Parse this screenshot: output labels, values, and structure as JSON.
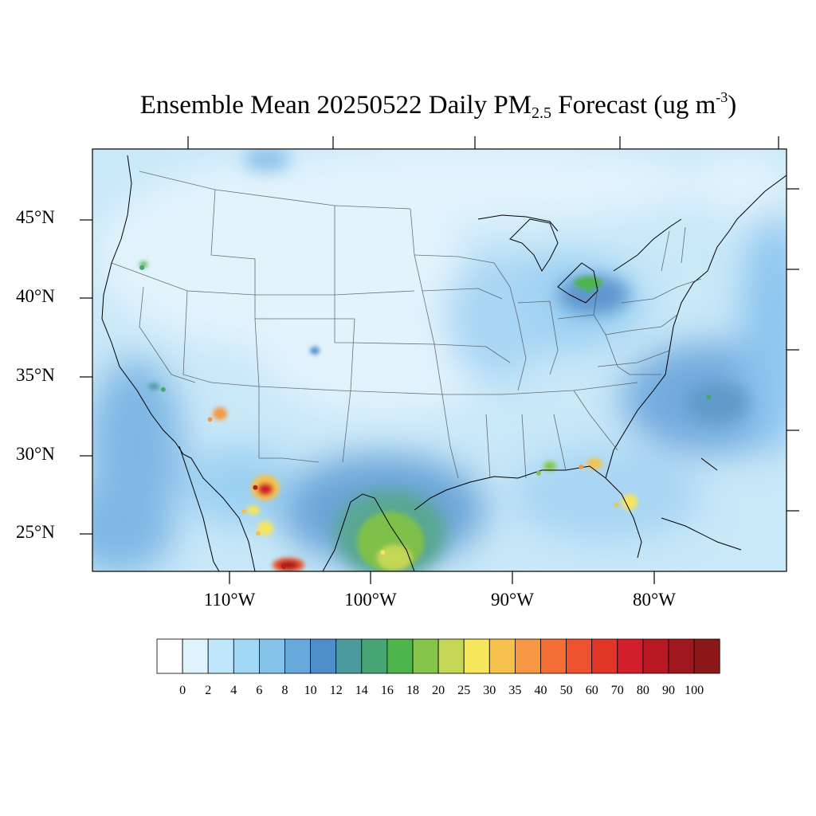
{
  "title": {
    "prefix": "Ensemble Mean 20250522 Daily PM",
    "subscript": "2.5",
    "middle": " Forecast (ug m",
    "superscript": "-3",
    "suffix": ")"
  },
  "map": {
    "lon_range": [
      -119,
      -70
    ],
    "lat_range": [
      22.8,
      49.5
    ],
    "lat_labels": [
      "45°N",
      "40°N",
      "35°N",
      "30°N",
      "25°N"
    ],
    "lat_values": [
      45,
      40,
      35,
      30,
      25
    ],
    "lon_labels": [
      "110°W",
      "100°W",
      "90°W",
      "80°W"
    ],
    "lon_values": [
      -110,
      -100,
      -90,
      -80
    ],
    "background_color": "#c9e8f8"
  },
  "colorbar": {
    "labels": [
      "0",
      "2",
      "4",
      "6",
      "8",
      "10",
      "12",
      "14",
      "16",
      "18",
      "20",
      "25",
      "30",
      "35",
      "40",
      "50",
      "60",
      "70",
      "80",
      "90",
      "100"
    ],
    "colors": [
      "#ffffff",
      "#dff3fd",
      "#bfe6fa",
      "#a0d8f5",
      "#84c2ea",
      "#68a9dc",
      "#4f8cca",
      "#4a9a9e",
      "#46a572",
      "#4db54c",
      "#86c54c",
      "#c3d656",
      "#f7e55b",
      "#f7c14e",
      "#f69843",
      "#f36f35",
      "#ec522e",
      "#df3628",
      "#d11f2b",
      "#b81923",
      "#a0181d",
      "#8b1818"
    ]
  },
  "hotspots": [
    {
      "lon": -107.5,
      "lat": 28.1,
      "value": 80
    },
    {
      "lon": -105.5,
      "lat": 23.1,
      "value": 80
    },
    {
      "lon": -108.3,
      "lat": 26.6,
      "value": 30
    },
    {
      "lon": -107.3,
      "lat": 25.2,
      "value": 30
    },
    {
      "lon": -110.7,
      "lat": 32.4,
      "value": 35
    },
    {
      "lon": -84.5,
      "lat": 29.4,
      "value": 35
    },
    {
      "lon": -82.0,
      "lat": 27.0,
      "value": 30
    },
    {
      "lon": -98.5,
      "lat": 24.0,
      "value": 25
    },
    {
      "lon": -87.5,
      "lat": 29.0,
      "value": 18
    },
    {
      "lon": -84.0,
      "lat": 40.6,
      "value": 16
    },
    {
      "lon": -75.5,
      "lat": 33.8,
      "value": 14
    },
    {
      "lon": -115.5,
      "lat": 42.0,
      "value": 14
    },
    {
      "lon": -114.0,
      "lat": 34.3,
      "value": 14
    }
  ]
}
